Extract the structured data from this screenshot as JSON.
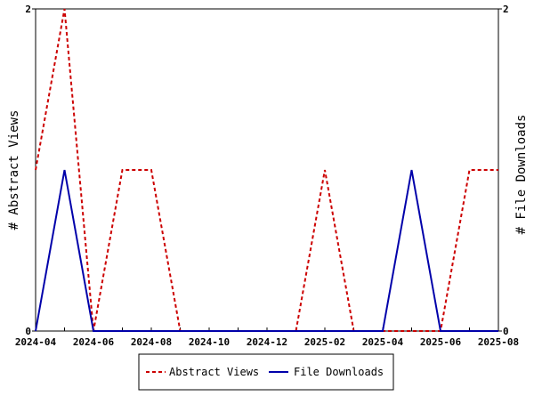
{
  "chart_data": {
    "type": "line",
    "x": [
      "2024-04",
      "2024-05",
      "2024-06",
      "2024-07",
      "2024-08",
      "2024-09",
      "2024-10",
      "2024-11",
      "2024-12",
      "2025-01",
      "2025-02",
      "2025-03",
      "2025-04",
      "2025-05",
      "2025-06",
      "2025-07",
      "2025-08"
    ],
    "xticks": [
      "2024-04",
      "2024-06",
      "2024-08",
      "2024-10",
      "2024-12",
      "2025-02",
      "2025-04",
      "2025-06",
      "2025-08"
    ],
    "ylabel_left": "# Abstract Views",
    "ylabel_right": "# File Downloads",
    "ylim_left": [
      0,
      2
    ],
    "ylim_right": [
      0,
      2
    ],
    "yticks_left": [
      "0",
      "2"
    ],
    "yticks_right": [
      "0",
      "2"
    ],
    "grid": false,
    "legend_position": "bottom",
    "series": [
      {
        "name": "Abstract Views",
        "axis": "left",
        "style": "dashed",
        "color": "#cc0000",
        "x": [
          "2024-04",
          "2024-05",
          "2024-06",
          "2024-07",
          "2024-08",
          "2024-09",
          "2024-10",
          "2024-11",
          "2024-12",
          "2025-01",
          "2025-02",
          "2025-03",
          "2025-04",
          "2025-05",
          "2025-06",
          "2025-07",
          "2025-08"
        ],
        "values": [
          1,
          2,
          0,
          1,
          1,
          0,
          0,
          0,
          0,
          0,
          1,
          0,
          0,
          0,
          0,
          1,
          1
        ]
      },
      {
        "name": "File Downloads",
        "axis": "right",
        "style": "solid",
        "color": "#0000aa",
        "x": [
          "2024-04",
          "2024-05",
          "2024-06",
          "2024-07",
          "2024-08",
          "2024-09",
          "2024-10",
          "2024-11",
          "2024-12",
          "2025-01",
          "2025-02",
          "2025-03",
          "2025-04",
          "2025-05",
          "2025-06",
          "2025-07",
          "2025-08"
        ],
        "values": [
          0,
          1,
          0,
          0,
          0,
          0,
          0,
          0,
          0,
          0,
          0,
          0,
          0,
          1,
          0,
          0,
          0
        ]
      }
    ]
  }
}
